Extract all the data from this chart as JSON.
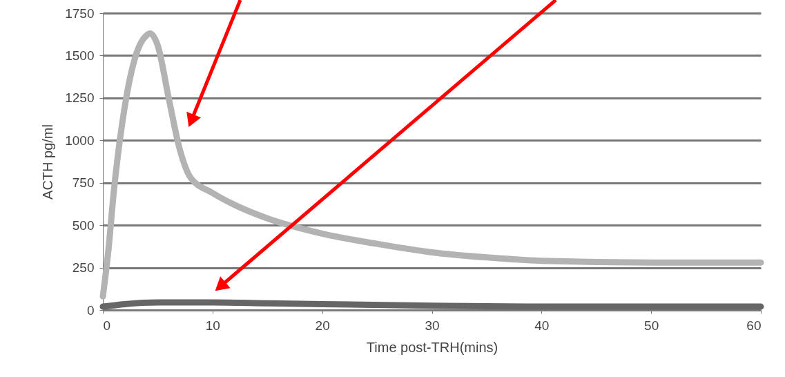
{
  "chart_data": {
    "type": "line",
    "xlabel": "Time post-TRH(mins)",
    "ylabel": "ACTH pg/ml",
    "xlim": [
      0,
      60
    ],
    "xticks": [
      0,
      10,
      20,
      30,
      40,
      50,
      60
    ],
    "ylim": [
      0,
      1750
    ],
    "yticks": [
      0,
      250,
      500,
      750,
      1000,
      1250,
      1500,
      1750
    ],
    "grid": "y",
    "line_style": "solid",
    "series": [
      {
        "color": "#b3b3b3",
        "x": [
          0,
          0.5,
          1,
          2,
          3,
          4,
          4.3,
          5,
          6,
          7,
          8,
          10,
          12,
          15,
          20,
          25,
          30,
          35,
          40,
          50,
          60
        ],
        "values": [
          80,
          350,
          700,
          1200,
          1500,
          1620,
          1630,
          1560,
          1250,
          950,
          780,
          690,
          620,
          540,
          450,
          390,
          340,
          310,
          290,
          280,
          280
        ]
      },
      {
        "color": "#666666",
        "x": [
          0,
          2,
          5,
          10,
          15,
          20,
          30,
          40,
          50,
          60
        ],
        "values": [
          20,
          35,
          45,
          45,
          40,
          35,
          25,
          20,
          20,
          20
        ]
      }
    ]
  }
}
